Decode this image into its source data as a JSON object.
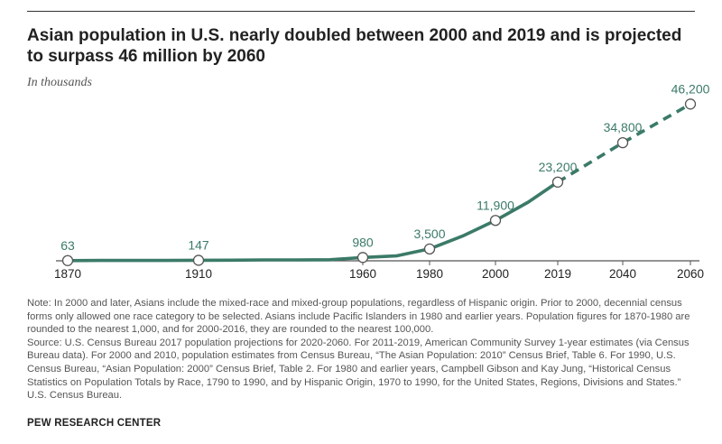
{
  "header": {
    "title": "Asian population in U.S. nearly doubled between 2000 and 2019 and is projected to surpass 46 million by 2060",
    "subtitle": "In thousands"
  },
  "chart_data": {
    "type": "line",
    "title": "Asian population in U.S. nearly doubled between 2000 and 2019 and is projected to surpass 46 million by 2060",
    "ylabel": "In thousands",
    "x_ticks": [
      "1870",
      "1910",
      "1960",
      "1980",
      "2000",
      "2019",
      "2040",
      "2060"
    ],
    "series": [
      {
        "style": "solid",
        "x": [
          1870,
          1880,
          1890,
          1900,
          1910,
          1920,
          1930,
          1940,
          1950,
          1960,
          1970,
          1980,
          1990,
          2000,
          2010,
          2019
        ],
        "y": [
          63,
          105,
          107,
          114,
          147,
          182,
          265,
          255,
          321,
          980,
          1430,
          3500,
          7274,
          11900,
          17300,
          23200
        ]
      },
      {
        "style": "dashed",
        "x": [
          2019,
          2040,
          2060
        ],
        "y": [
          23200,
          34800,
          46200
        ]
      }
    ],
    "labeled_points": [
      {
        "x": 1870,
        "y": 63,
        "label": "63"
      },
      {
        "x": 1910,
        "y": 147,
        "label": "147"
      },
      {
        "x": 1960,
        "y": 980,
        "label": "980"
      },
      {
        "x": 1980,
        "y": 3500,
        "label": "3,500"
      },
      {
        "x": 2000,
        "y": 11900,
        "label": "11,900"
      },
      {
        "x": 2019,
        "y": 23200,
        "label": "23,200"
      },
      {
        "x": 2040,
        "y": 34800,
        "label": "34,800"
      },
      {
        "x": 2060,
        "y": 46200,
        "label": "46,200"
      }
    ],
    "ylim": [
      0,
      50000
    ],
    "grid": false,
    "legend": "none",
    "colors": {
      "line": "#3b7a68",
      "label": "#3b7a68",
      "axis": "#555555",
      "tick_label": "#222222"
    }
  },
  "notes": {
    "note": "Note: In 2000 and later, Asians include the mixed-race and mixed-group populations, regardless of Hispanic origin. Prior to 2000, decennial census forms only allowed one race category to be selected. Asians include Pacific Islanders in 1980 and earlier years. Population figures for 1870-1980 are rounded to the nearest 1,000, and for 2000-2016, they are rounded to the nearest 100,000.",
    "source": "Source: U.S. Census Bureau 2017 population projections for 2020-2060. For 2011-2019, American Community Survey 1-year estimates (via Census Bureau data). For 2000 and 2010, population estimates from Census Bureau, “The Asian Population: 2010” Census Brief, Table 6. For 1990, U.S. Census Bureau, “Asian Population: 2000” Census Brief, Table 2. For 1980 and earlier years, Campbell Gibson and Kay Jung, “Historical Census Statistics on Population Totals by Race, 1790 to 1990, and by Hispanic Origin, 1970 to 1990, for the United States, Regions, Divisions and States.” U.S. Census Bureau."
  },
  "footer": {
    "brand": "PEW RESEARCH CENTER"
  }
}
